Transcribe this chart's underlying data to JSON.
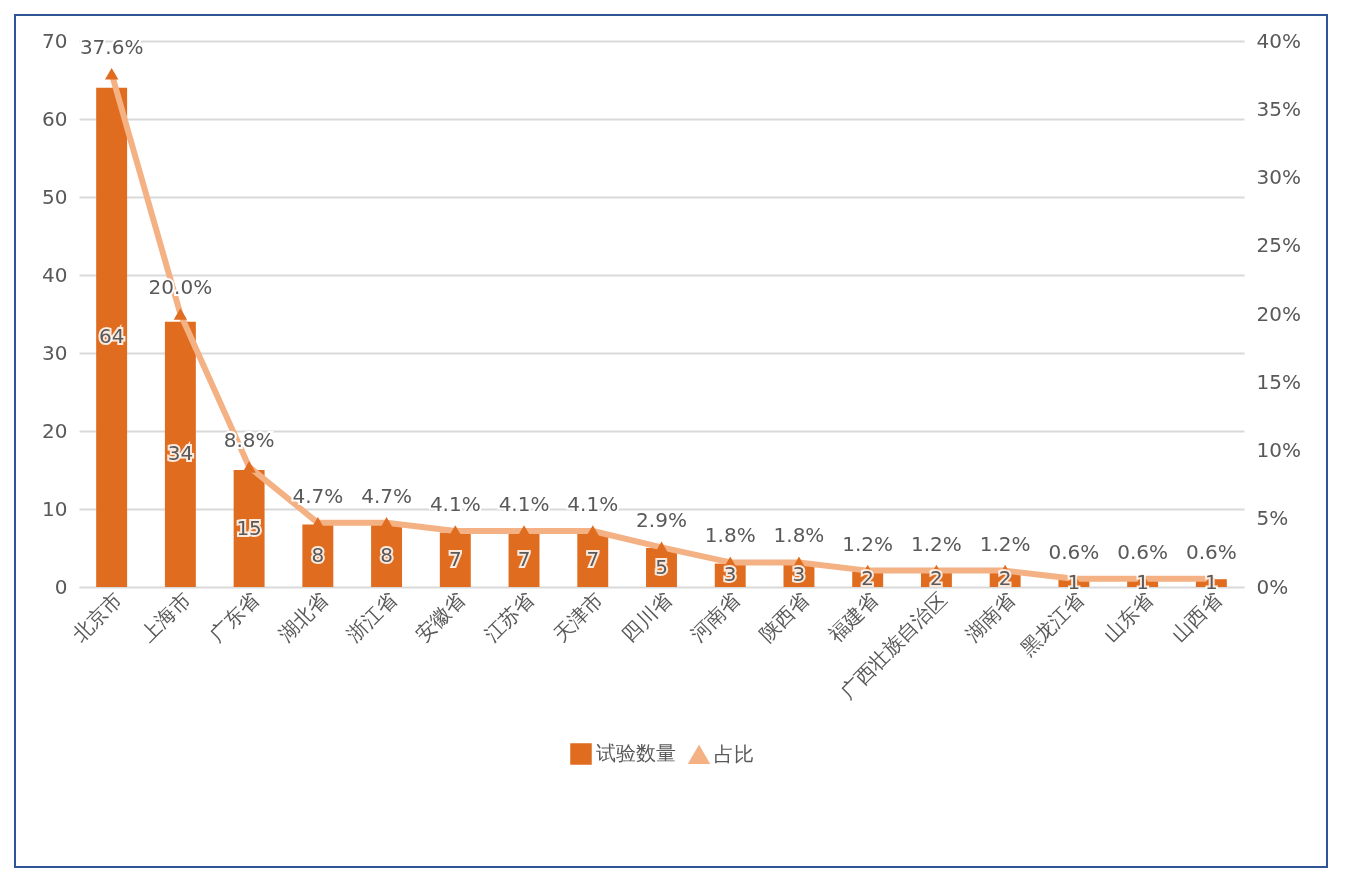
{
  "chart_data": {
    "type": "bar",
    "categories": [
      "北京市",
      "上海市",
      "广东省",
      "湖北省",
      "浙江省",
      "安徽省",
      "江苏省",
      "天津市",
      "四川省",
      "河南省",
      "陕西省",
      "福建省",
      "广西壮族自治区",
      "湖南省",
      "黑龙江省",
      "山东省",
      "山西省"
    ],
    "series": [
      {
        "name": "试验数量",
        "color": "#e06c1f",
        "values": [
          64,
          34,
          15,
          8,
          8,
          7,
          7,
          7,
          5,
          3,
          3,
          2,
          2,
          2,
          1,
          1,
          1
        ],
        "value_labels": [
          "64",
          "34",
          "15",
          "8",
          "8",
          "7",
          "7",
          "7",
          "5",
          "3",
          "3",
          "2",
          "2",
          "2",
          "1",
          "1",
          "1"
        ]
      },
      {
        "name": "占比",
        "type": "line",
        "axis": "y2",
        "color": "#f4b183",
        "marker": "triangle",
        "values": [
          37.6,
          20.0,
          8.8,
          4.7,
          4.7,
          4.1,
          4.1,
          4.1,
          2.9,
          1.8,
          1.8,
          1.2,
          1.2,
          1.2,
          0.6,
          0.6,
          0.6
        ],
        "value_labels": [
          "37.6%",
          "20.0%",
          "8.8%",
          "4.7%",
          "4.7%",
          "4.1%",
          "4.1%",
          "4.1%",
          "2.9%",
          "1.8%",
          "1.8%",
          "1.2%",
          "1.2%",
          "1.2%",
          "0.6%",
          "0.6%",
          "0.6%"
        ]
      }
    ],
    "ylim": [
      0,
      70
    ],
    "yticks": [
      0,
      10,
      20,
      30,
      40,
      50,
      60,
      70
    ],
    "y2lim": [
      0,
      40
    ],
    "y2ticks": [
      {
        "value": 0,
        "label": "0%"
      },
      {
        "value": 5,
        "label": "5%"
      },
      {
        "value": 10,
        "label": "10%"
      },
      {
        "value": 15,
        "label": "15%"
      },
      {
        "value": 20,
        "label": "20%"
      },
      {
        "value": 25,
        "label": "25%"
      },
      {
        "value": 30,
        "label": "30%"
      },
      {
        "value": 35,
        "label": "35%"
      },
      {
        "value": 40,
        "label": "40%"
      }
    ],
    "grid": "y",
    "legend": "bottom"
  }
}
